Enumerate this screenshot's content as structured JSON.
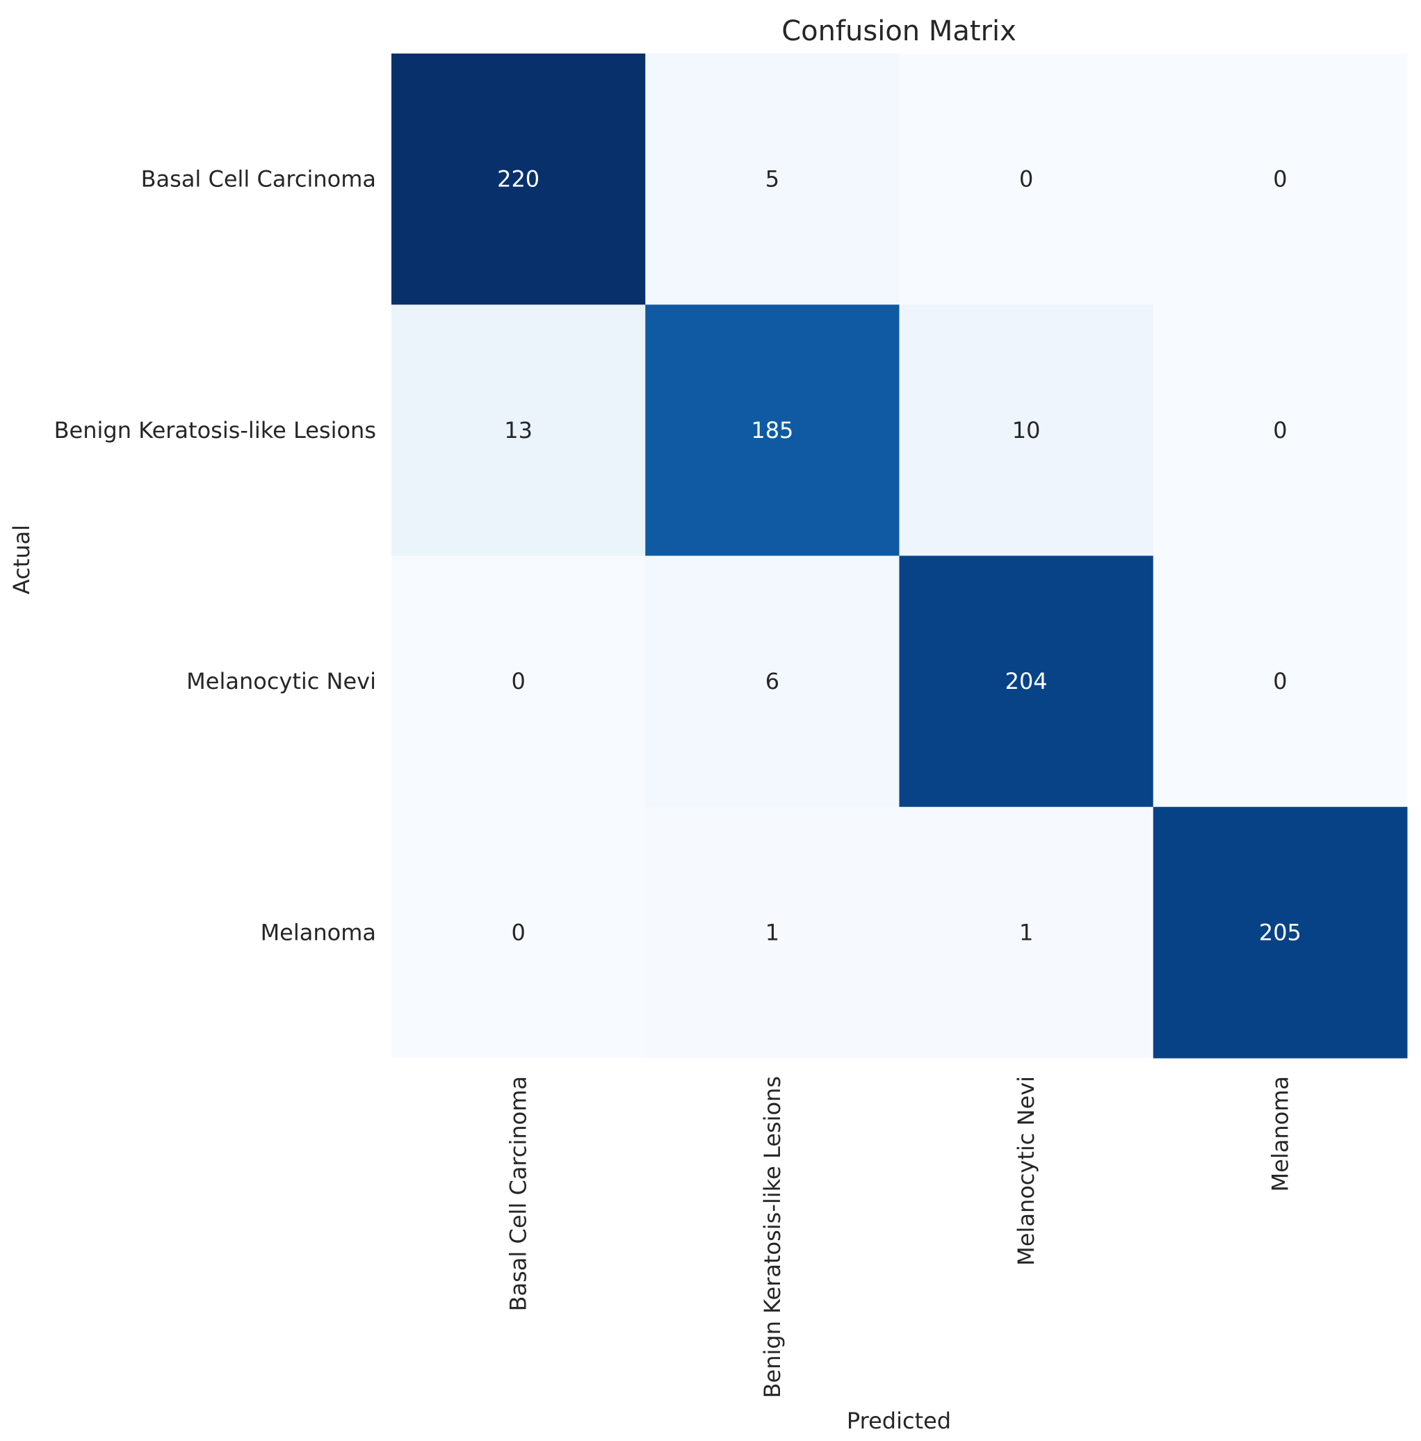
{
  "chart_data": {
    "type": "heatmap",
    "title": "Confusion Matrix",
    "xlabel": "Predicted",
    "ylabel": "Actual",
    "x_categories": [
      "Basal Cell Carcinoma",
      "Benign Keratosis-like Lesions",
      "Melanocytic Nevi",
      "Melanoma"
    ],
    "y_categories": [
      "Basal Cell Carcinoma",
      "Benign Keratosis-like Lesions",
      "Melanocytic Nevi",
      "Melanoma"
    ],
    "values": [
      [
        220,
        5,
        0,
        0
      ],
      [
        13,
        185,
        10,
        0
      ],
      [
        0,
        6,
        204,
        0
      ],
      [
        0,
        1,
        1,
        205
      ]
    ],
    "colormap": "Blues",
    "vmin": 0,
    "vmax": 220,
    "colorbar": false,
    "grid": false
  }
}
